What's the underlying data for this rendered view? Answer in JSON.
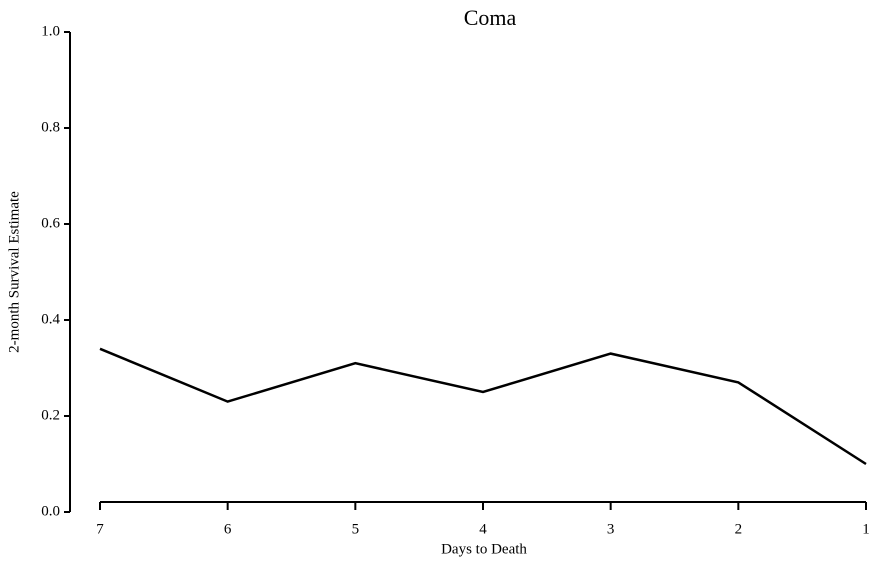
{
  "chart_data": {
    "type": "line",
    "title": "Coma",
    "x_label": "Days to Death",
    "y_label": "2-month Survival Estimate",
    "x": [
      7,
      6,
      5,
      4,
      3,
      2,
      1
    ],
    "series": [
      {
        "color": "#000000",
        "values": [
          0.34,
          0.23,
          0.31,
          0.25,
          0.33,
          0.27,
          0.1
        ]
      }
    ],
    "xlim": [
      7,
      1
    ],
    "xticks": [
      7,
      6,
      5,
      4,
      3,
      2,
      1
    ],
    "ylim": [
      0,
      1
    ],
    "yticks": [
      {
        "value": 0,
        "label": "0.0"
      },
      0.2,
      0.4,
      0.6,
      0.8,
      {
        "value": 1,
        "label": "1.0"
      }
    ],
    "grid": false
  }
}
